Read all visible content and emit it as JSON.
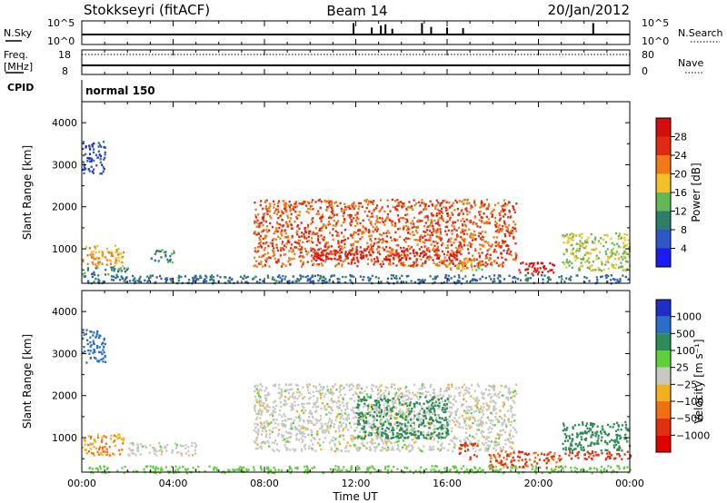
{
  "header": {
    "station": "Stokkseyri (fitACF)",
    "beam": "Beam 14",
    "date": "20/Jan/2012"
  },
  "panels": {
    "nsky": {
      "label": "N.Sky",
      "left_ticks": [
        "10^5",
        "10^0"
      ],
      "right_ticks": [
        "10^5",
        "10^0"
      ],
      "right_label": "N.Search",
      "spikes": [
        {
          "t": 11.9,
          "v": 0.9
        },
        {
          "t": 12.7,
          "v": 0.55
        },
        {
          "t": 13.1,
          "v": 0.7
        },
        {
          "t": 13.3,
          "v": 0.8
        },
        {
          "t": 13.6,
          "v": 0.45
        },
        {
          "t": 14.9,
          "v": 0.9
        },
        {
          "t": 15.3,
          "v": 0.6
        },
        {
          "t": 16.0,
          "v": 0.55
        },
        {
          "t": 16.7,
          "v": 0.5
        },
        {
          "t": 22.4,
          "v": 0.9
        }
      ]
    },
    "freq": {
      "label": "Freq.",
      "unit": "[MHz]",
      "left_ticks": [
        "18",
        "8"
      ],
      "right_ticks": [
        "80",
        "0"
      ],
      "right_label": "Nave"
    },
    "cpid": {
      "label": "CPID",
      "value": "normal 150"
    }
  },
  "axes": {
    "xlabel": "Time UT",
    "x_ticks": [
      "00:00",
      "04:00",
      "08:00",
      "12:00",
      "16:00",
      "20:00",
      "00:00"
    ],
    "ylabel": "Slant Range [km]",
    "y_ticks": [
      "1000",
      "2000",
      "3000",
      "4000"
    ]
  },
  "colorbars": {
    "power": {
      "label": "Power [dB]",
      "ticks": [
        "4",
        "8",
        "12",
        "16",
        "20",
        "24",
        "28"
      ],
      "colors": [
        "#1c1cf0",
        "#2f56c8",
        "#2f7f68",
        "#63b65a",
        "#f0c22a",
        "#f07a16",
        "#e02a14",
        "#d40d0d"
      ]
    },
    "velocity": {
      "label": "Velocity [m s⁻¹]",
      "ticks": [
        "1000",
        "500",
        "100",
        "25",
        "−25",
        "−100",
        "−500",
        "−1000"
      ],
      "colors": [
        "#1e2fc8",
        "#2a6ec8",
        "#2e8b57",
        "#5fcf3c",
        "#c8c8c2",
        "#f0b020",
        "#f07010",
        "#e03010",
        "#e00000"
      ]
    }
  },
  "chart_data": [
    {
      "type": "heatmap",
      "title": "Power",
      "xlabel": "Time UT",
      "ylabel": "Slant Range [km]",
      "xlim": [
        0,
        24
      ],
      "ylim": [
        180,
        4500
      ],
      "colorbar_label": "Power [dB]",
      "regions": [
        {
          "t": [
            0.0,
            1.8
          ],
          "r": [
            600,
            1100
          ],
          "value": 20
        },
        {
          "t": [
            0.0,
            2.0
          ],
          "r": [
            400,
            600
          ],
          "value": 10
        },
        {
          "t": [
            0.0,
            1.0
          ],
          "r": [
            2800,
            3600
          ],
          "value": 6
        },
        {
          "t": [
            3.0,
            4.0
          ],
          "r": [
            700,
            1000
          ],
          "value": 10
        },
        {
          "t": [
            7.5,
            19.0
          ],
          "r": [
            600,
            2200
          ],
          "value": 24
        },
        {
          "t": [
            10.0,
            16.5
          ],
          "r": [
            750,
            1000
          ],
          "value": 28
        },
        {
          "t": [
            16.0,
            17.5
          ],
          "r": [
            500,
            800
          ],
          "value": 18
        },
        {
          "t": [
            19.0,
            20.7
          ],
          "r": [
            400,
            700
          ],
          "value": 28
        },
        {
          "t": [
            21.0,
            24.0
          ],
          "r": [
            500,
            1400
          ],
          "value": 16
        },
        {
          "t": [
            0.0,
            24.0
          ],
          "r": [
            200,
            400
          ],
          "value": 8
        }
      ]
    },
    {
      "type": "heatmap",
      "title": "Velocity",
      "xlabel": "Time UT",
      "ylabel": "Slant Range [km]",
      "xlim": [
        0,
        24
      ],
      "ylim": [
        180,
        4500
      ],
      "colorbar_label": "Velocity [m s⁻¹]",
      "regions": [
        {
          "t": [
            0.0,
            1.8
          ],
          "r": [
            600,
            1100
          ],
          "value": -100
        },
        {
          "t": [
            0.0,
            1.0
          ],
          "r": [
            2800,
            3600
          ],
          "value": 500
        },
        {
          "t": [
            2.0,
            5.0
          ],
          "r": [
            600,
            900
          ],
          "value": 0
        },
        {
          "t": [
            7.5,
            19.0
          ],
          "r": [
            700,
            2300
          ],
          "value": 0
        },
        {
          "t": [
            12.0,
            16.0
          ],
          "r": [
            1000,
            2000
          ],
          "value": 250
        },
        {
          "t": [
            16.5,
            17.3
          ],
          "r": [
            500,
            900
          ],
          "value": -500
        },
        {
          "t": [
            17.8,
            21.0
          ],
          "r": [
            300,
            700
          ],
          "value": -300
        },
        {
          "t": [
            21.0,
            24.0
          ],
          "r": [
            700,
            1400
          ],
          "value": 250
        },
        {
          "t": [
            21.0,
            24.0
          ],
          "r": [
            500,
            700
          ],
          "value": -500
        },
        {
          "t": [
            0.0,
            24.0
          ],
          "r": [
            180,
            350
          ],
          "value": 60
        }
      ]
    }
  ]
}
